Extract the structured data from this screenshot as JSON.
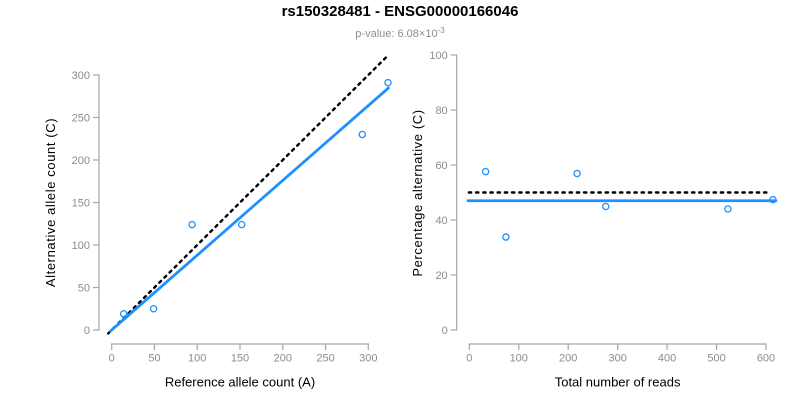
{
  "header": {
    "title": "rs150328481 - ENSG00000166046",
    "subtitle_prefix": "p-value: 6.08×10",
    "subtitle_exponent": "-3"
  },
  "colors": {
    "accent_blue": "#1E90FF",
    "reference_black": "#000000",
    "axis_gray": "#a6a6a6",
    "tick_label_gray": "#8c8c8c",
    "subtitle_gray": "#8d8d8d"
  },
  "chart_data": [
    {
      "type": "scatter",
      "xlabel": "Reference allele count (A)",
      "ylabel": "Alternative allele count (C)",
      "x": [
        14,
        49,
        94,
        152,
        293,
        323
      ],
      "y": [
        19,
        25,
        124,
        124,
        230,
        291
      ],
      "xticks": [
        0,
        50,
        100,
        150,
        200,
        250,
        300
      ],
      "yticks": [
        0,
        50,
        100,
        150,
        200,
        250,
        300
      ],
      "xlim": [
        0,
        336
      ],
      "ylim": [
        0,
        322
      ],
      "grid": false,
      "point_style": "open-circle",
      "lines": [
        {
          "role": "identity-reference",
          "style": "dotted",
          "color": "#000000",
          "slope": 1,
          "intercept": 0
        },
        {
          "role": "fitted-proportion",
          "style": "solid",
          "color": "#1E90FF",
          "slope": 0.88,
          "intercept": 0
        }
      ]
    },
    {
      "type": "scatter",
      "xlabel": "Total number of reads",
      "ylabel": "Percentage alternative (C)",
      "x": [
        33,
        74,
        218,
        276,
        523,
        614
      ],
      "y": [
        57.6,
        33.8,
        56.9,
        44.9,
        44.0,
        47.4
      ],
      "xticks": [
        0,
        100,
        200,
        300,
        400,
        500,
        600
      ],
      "yticks": [
        0,
        20,
        40,
        60,
        80,
        100
      ],
      "xlim": [
        0,
        643
      ],
      "ylim": [
        0,
        100
      ],
      "grid": false,
      "point_style": "open-circle",
      "lines": [
        {
          "role": "fifty-percent-reference",
          "style": "dotted",
          "color": "#000000",
          "y": 50
        },
        {
          "role": "mean-percentage",
          "style": "solid",
          "color": "#1E90FF",
          "y": 47
        }
      ]
    }
  ]
}
